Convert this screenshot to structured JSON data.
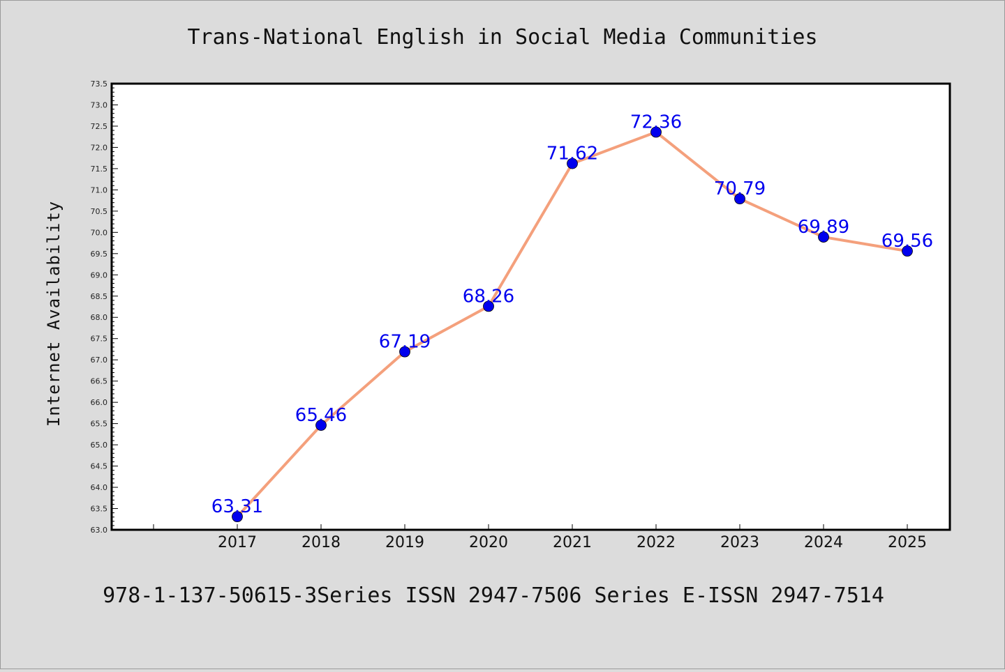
{
  "chart_data": {
    "type": "line",
    "title": "Trans-National English in Social Media Communities",
    "xlabel": "",
    "ylabel": "Internet Availability",
    "categories": [
      "2017",
      "2018",
      "2019",
      "2020",
      "2021",
      "2022",
      "2023",
      "2024",
      "2025"
    ],
    "series": [
      {
        "values": [
          63.31,
          65.46,
          67.19,
          68.26,
          71.62,
          72.36,
          70.79,
          69.89,
          69.56
        ],
        "labels": [
          "63.31",
          "65.46",
          "67.19",
          "68.26",
          "71.62",
          "72.36",
          "70.79",
          "69.89",
          "69.56"
        ],
        "line_color": "#f4a07c",
        "marker_color": "#0000ee",
        "label_color": "#0000ee"
      }
    ],
    "ylim": [
      63.0,
      73.5
    ],
    "yticks": [
      "63.0",
      "63.5",
      "64.0",
      "64.5",
      "65.0",
      "65.5",
      "66.0",
      "66.5",
      "67.0",
      "67.5",
      "68.0",
      "68.5",
      "69.0",
      "69.5",
      "70.0",
      "70.5",
      "71.0",
      "71.5",
      "72.0",
      "72.5",
      "73.0",
      "73.5"
    ],
    "grid": false,
    "legend": "none",
    "background": "#dcdcdc",
    "plot_background": "#ffffff"
  },
  "footer": "978-1-137-50615-3Series ISSN 2947-7506 Series E-ISSN 2947-7514"
}
